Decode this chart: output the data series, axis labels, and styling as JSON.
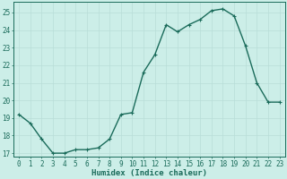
{
  "x": [
    0,
    1,
    2,
    3,
    4,
    5,
    6,
    7,
    8,
    9,
    10,
    11,
    12,
    13,
    14,
    15,
    16,
    17,
    18,
    19,
    20,
    21,
    22,
    23
  ],
  "y": [
    19.2,
    18.7,
    17.8,
    17.0,
    17.0,
    17.2,
    17.2,
    17.3,
    17.8,
    19.2,
    19.3,
    21.6,
    22.6,
    24.3,
    23.9,
    24.3,
    24.6,
    25.1,
    25.2,
    24.8,
    23.1,
    21.0,
    19.9,
    19.9
  ],
  "ylim": [
    16.8,
    25.6
  ],
  "yticks": [
    17,
    18,
    19,
    20,
    21,
    22,
    23,
    24,
    25
  ],
  "xlabel": "Humidex (Indice chaleur)",
  "line_color": "#1a6b5a",
  "bg_color": "#cceee8",
  "grid_color": "#b8ddd8",
  "label_color": "#1a6b5a",
  "tick_fontsize": 5.5,
  "xlabel_fontsize": 6.5,
  "markersize": 2.2,
  "linewidth": 1.0
}
